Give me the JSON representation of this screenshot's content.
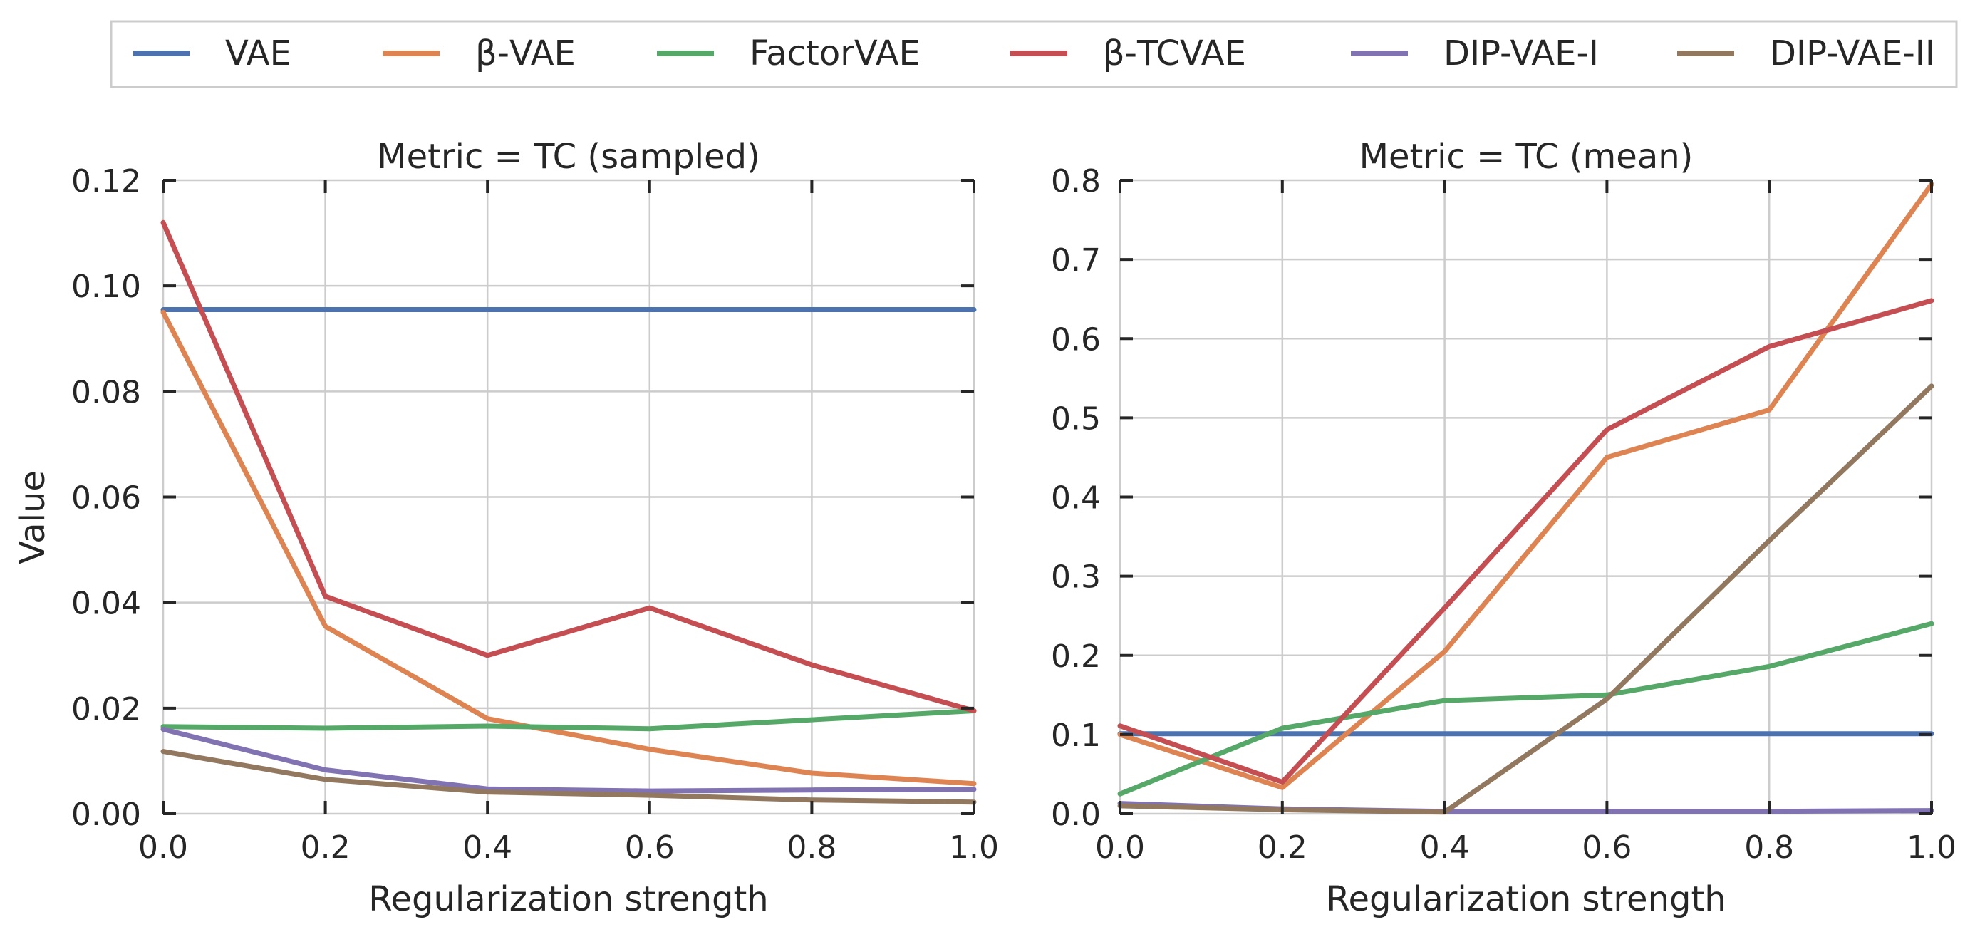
{
  "legend": {
    "entries": [
      {
        "label": "VAE",
        "color": "#4c72b0"
      },
      {
        "label": "β-VAE",
        "color": "#dd8452"
      },
      {
        "label": "FactorVAE",
        "color": "#55a868"
      },
      {
        "label": "β-TCVAE",
        "color": "#c44e52"
      },
      {
        "label": "DIP-VAE-I",
        "color": "#8172b2"
      },
      {
        "label": "DIP-VAE-II",
        "color": "#937860"
      }
    ]
  },
  "chart_data": [
    {
      "type": "line",
      "title": "Metric = TC (sampled)",
      "xlabel": "Regularization strength",
      "ylabel": "Value",
      "xlim": [
        0.0,
        1.0
      ],
      "ylim": [
        0.0,
        0.12
      ],
      "xticks": [
        "0.0",
        "0.2",
        "0.4",
        "0.6",
        "0.8",
        "1.0"
      ],
      "yticks": [
        "0.00",
        "0.02",
        "0.04",
        "0.06",
        "0.08",
        "0.10",
        "0.12"
      ],
      "grid": true,
      "series": [
        {
          "name": "VAE",
          "color": "#4c72b0",
          "x": [
            0.0,
            0.2,
            0.4,
            0.6,
            0.8,
            1.0
          ],
          "y": [
            0.0955,
            0.0955,
            0.0955,
            0.0955,
            0.0955,
            0.0955
          ]
        },
        {
          "name": "β-VAE",
          "color": "#dd8452",
          "x": [
            0.0,
            0.2,
            0.4,
            0.6,
            0.8,
            1.0
          ],
          "y": [
            0.095,
            0.0355,
            0.018,
            0.0122,
            0.0077,
            0.0057
          ]
        },
        {
          "name": "FactorVAE",
          "color": "#55a868",
          "x": [
            0.0,
            0.2,
            0.4,
            0.6,
            0.8,
            1.0
          ],
          "y": [
            0.0165,
            0.0162,
            0.0166,
            0.0161,
            0.0178,
            0.0195
          ]
        },
        {
          "name": "β-TCVAE",
          "color": "#c44e52",
          "x": [
            0.0,
            0.2,
            0.4,
            0.6,
            0.8,
            1.0
          ],
          "y": [
            0.112,
            0.0412,
            0.03,
            0.039,
            0.0282,
            0.0195
          ]
        },
        {
          "name": "DIP-VAE-I",
          "color": "#8172b2",
          "x": [
            0.0,
            0.2,
            0.4,
            0.6,
            0.8,
            1.0
          ],
          "y": [
            0.016,
            0.0083,
            0.0047,
            0.0043,
            0.0045,
            0.0046
          ]
        },
        {
          "name": "DIP-VAE-II",
          "color": "#937860",
          "x": [
            0.0,
            0.2,
            0.4,
            0.6,
            0.8,
            1.0
          ],
          "y": [
            0.0118,
            0.0065,
            0.0041,
            0.0035,
            0.0026,
            0.0022
          ]
        }
      ]
    },
    {
      "type": "line",
      "title": "Metric = TC (mean)",
      "xlabel": "Regularization strength",
      "ylabel": "",
      "xlim": [
        0.0,
        1.0
      ],
      "ylim": [
        0.0,
        0.8
      ],
      "xticks": [
        "0.0",
        "0.2",
        "0.4",
        "0.6",
        "0.8",
        "1.0"
      ],
      "yticks": [
        "0.0",
        "0.1",
        "0.2",
        "0.3",
        "0.4",
        "0.5",
        "0.6",
        "0.7",
        "0.8"
      ],
      "grid": true,
      "series": [
        {
          "name": "VAE",
          "color": "#4c72b0",
          "x": [
            0.0,
            0.2,
            0.4,
            0.6,
            0.8,
            1.0
          ],
          "y": [
            0.101,
            0.101,
            0.101,
            0.101,
            0.101,
            0.101
          ]
        },
        {
          "name": "β-VAE",
          "color": "#dd8452",
          "x": [
            0.0,
            0.2,
            0.4,
            0.6,
            0.8,
            1.0
          ],
          "y": [
            0.1,
            0.033,
            0.205,
            0.45,
            0.51,
            0.795
          ]
        },
        {
          "name": "FactorVAE",
          "color": "#55a868",
          "x": [
            0.0,
            0.2,
            0.4,
            0.6,
            0.8,
            1.0
          ],
          "y": [
            0.025,
            0.108,
            0.143,
            0.15,
            0.186,
            0.24
          ]
        },
        {
          "name": "β-TCVAE",
          "color": "#c44e52",
          "x": [
            0.0,
            0.2,
            0.4,
            0.6,
            0.8,
            1.0
          ],
          "y": [
            0.111,
            0.04,
            0.26,
            0.485,
            0.59,
            0.648
          ]
        },
        {
          "name": "DIP-VAE-I",
          "color": "#8172b2",
          "x": [
            0.0,
            0.2,
            0.4,
            0.6,
            0.8,
            1.0
          ],
          "y": [
            0.013,
            0.006,
            0.003,
            0.003,
            0.003,
            0.004
          ]
        },
        {
          "name": "DIP-VAE-II",
          "color": "#937860",
          "x": [
            0.0,
            0.2,
            0.4,
            0.6,
            0.8,
            1.0
          ],
          "y": [
            0.01,
            0.005,
            0.002,
            0.145,
            0.345,
            0.54
          ]
        }
      ]
    }
  ]
}
